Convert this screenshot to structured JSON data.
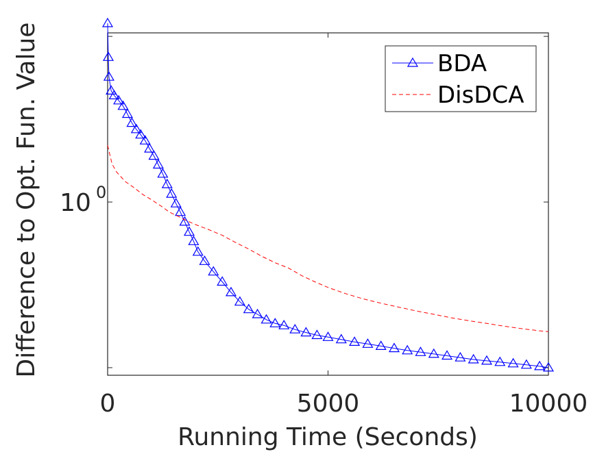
{
  "chart_data": {
    "type": "line",
    "title": "",
    "xlabel": "Running Time (Seconds)",
    "ylabel": "Difference to Opt. Fun. Value",
    "xlim": [
      0,
      10000
    ],
    "ylim": [
      0.09,
      10.5
    ],
    "yscale": "log",
    "grid": false,
    "legend_position": "top-right",
    "x_ticks": [
      {
        "value": 0,
        "label": "0"
      },
      {
        "value": 5000,
        "label": "5000"
      },
      {
        "value": 10000,
        "label": "10000"
      }
    ],
    "y_ticks": [
      {
        "value": 0.1,
        "label": ""
      },
      {
        "value": 1,
        "label": "10",
        "exponent": "0"
      },
      {
        "value": 10,
        "label": ""
      }
    ],
    "series": [
      {
        "name": "BDA",
        "color": "#0000ff",
        "line_style": "solid",
        "marker": "triangle",
        "x": [
          0,
          15,
          30,
          80,
          150,
          250,
          350,
          450,
          550,
          650,
          750,
          850,
          950,
          1050,
          1150,
          1250,
          1350,
          1450,
          1550,
          1650,
          1750,
          1850,
          1950,
          2050,
          2200,
          2400,
          2600,
          2800,
          3000,
          3200,
          3400,
          3600,
          3800,
          4000,
          4250,
          4500,
          4750,
          5000,
          5300,
          5600,
          5900,
          6200,
          6500,
          6800,
          7100,
          7400,
          7700,
          8000,
          8300,
          8600,
          8900,
          9200,
          9500,
          9800,
          10000
        ],
        "y": [
          12.0,
          7.5,
          5.7,
          4.7,
          4.4,
          4.1,
          3.8,
          3.4,
          3.0,
          2.75,
          2.55,
          2.35,
          2.1,
          1.9,
          1.68,
          1.48,
          1.28,
          1.12,
          0.98,
          0.87,
          0.76,
          0.66,
          0.58,
          0.5,
          0.44,
          0.38,
          0.33,
          0.285,
          0.25,
          0.225,
          0.21,
          0.195,
          0.185,
          0.18,
          0.17,
          0.163,
          0.157,
          0.153,
          0.148,
          0.143,
          0.139,
          0.135,
          0.131,
          0.127,
          0.124,
          0.121,
          0.118,
          0.115,
          0.112,
          0.11,
          0.108,
          0.106,
          0.104,
          0.102,
          0.1
        ]
      },
      {
        "name": "DisDCA",
        "color": "#ff0000",
        "line_style": "dashed",
        "marker": "none",
        "x": [
          0,
          100,
          200,
          400,
          600,
          800,
          1000,
          1200,
          1400,
          1600,
          1800,
          2000,
          2300,
          2600,
          2900,
          3200,
          3500,
          3800,
          4100,
          4400,
          4700,
          5000,
          5400,
          5800,
          6200,
          6600,
          7000,
          7400,
          7800,
          8200,
          8600,
          9000,
          9400,
          9800,
          10000
        ],
        "y": [
          2.2,
          1.7,
          1.52,
          1.33,
          1.22,
          1.11,
          1.03,
          0.95,
          0.87,
          0.82,
          0.77,
          0.73,
          0.68,
          0.63,
          0.57,
          0.52,
          0.47,
          0.43,
          0.4,
          0.36,
          0.33,
          0.305,
          0.28,
          0.26,
          0.245,
          0.232,
          0.22,
          0.21,
          0.2,
          0.192,
          0.185,
          0.178,
          0.172,
          0.167,
          0.165
        ]
      }
    ]
  }
}
